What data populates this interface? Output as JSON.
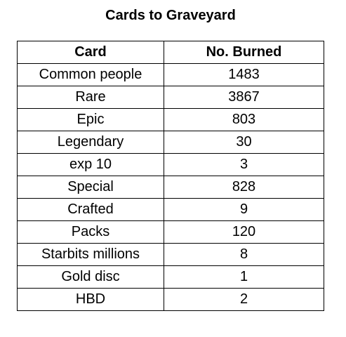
{
  "title": "Cards to Graveyard",
  "table": {
    "headers": [
      "Card",
      "No. Burned"
    ],
    "rows": [
      [
        "Common people",
        "1483"
      ],
      [
        "Rare",
        "3867"
      ],
      [
        "Epic",
        "803"
      ],
      [
        "Legendary",
        "30"
      ],
      [
        "exp 10",
        "3"
      ],
      [
        "Special",
        "828"
      ],
      [
        "Crafted",
        "9"
      ],
      [
        "Packs",
        "120"
      ],
      [
        "Starbits millions",
        "8"
      ],
      [
        "Gold disc",
        "1"
      ],
      [
        "HBD",
        "2"
      ]
    ]
  }
}
